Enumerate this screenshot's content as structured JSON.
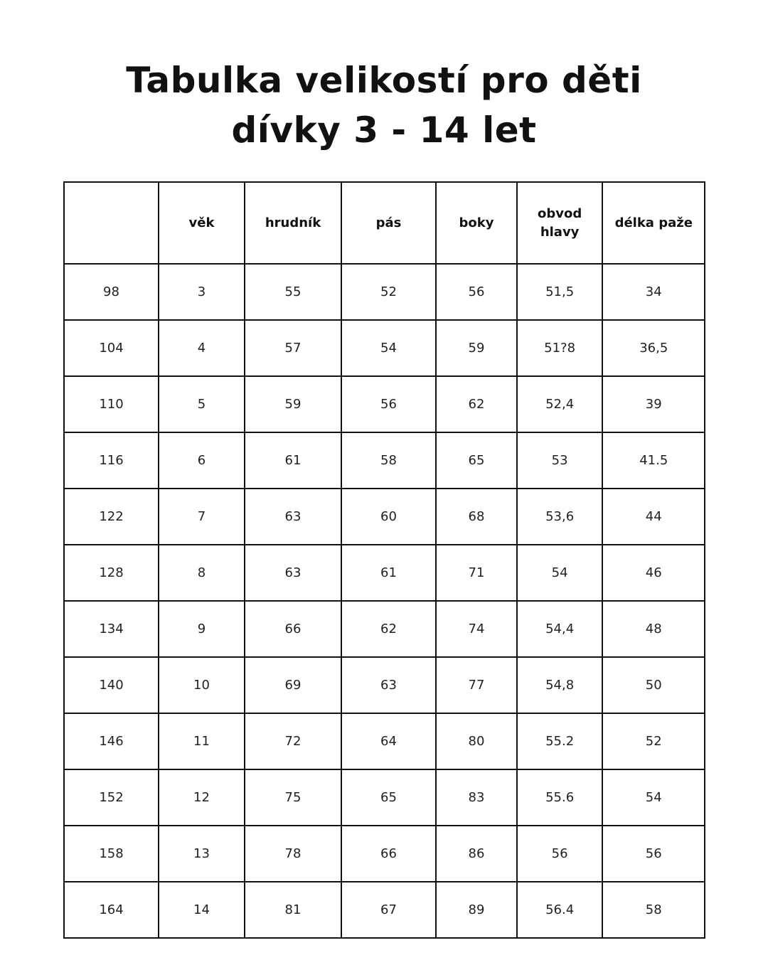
{
  "title": {
    "line1": "Tabulka velikostí pro děti",
    "line2": "dívky 3 - 14 let"
  },
  "table": {
    "headers": [
      "",
      "věk",
      "hrudník",
      "pás",
      "boky",
      "obvod hlavy",
      "délka paže"
    ],
    "rows": [
      [
        "98",
        "3",
        "55",
        "52",
        "56",
        "51,5",
        "34"
      ],
      [
        "104",
        "4",
        "57",
        "54",
        "59",
        "51?8",
        "36,5"
      ],
      [
        "110",
        "5",
        "59",
        "56",
        "62",
        "52,4",
        "39"
      ],
      [
        "116",
        "6",
        "61",
        "58",
        "65",
        "53",
        "41.5"
      ],
      [
        "122",
        "7",
        "63",
        "60",
        "68",
        "53,6",
        "44"
      ],
      [
        "128",
        "8",
        "63",
        "61",
        "71",
        "54",
        "46"
      ],
      [
        "134",
        "9",
        "66",
        "62",
        "74",
        "54,4",
        "48"
      ],
      [
        "140",
        "10",
        "69",
        "63",
        "77",
        "54,8",
        "50"
      ],
      [
        "146",
        "11",
        "72",
        "64",
        "80",
        "55.2",
        "52"
      ],
      [
        "152",
        "12",
        "75",
        "65",
        "83",
        "55.6",
        "54"
      ],
      [
        "158",
        "13",
        "78",
        "66",
        "86",
        "56",
        "56"
      ],
      [
        "164",
        "14",
        "81",
        "67",
        "89",
        "56.4",
        "58"
      ]
    ]
  }
}
